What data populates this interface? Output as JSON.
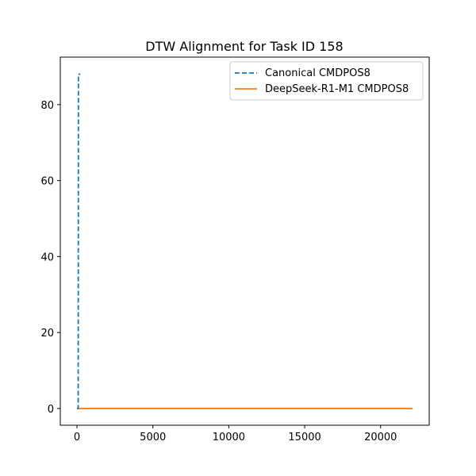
{
  "chart_data": {
    "type": "line",
    "title": "DTW Alignment for Task ID 158",
    "xlabel": "",
    "ylabel": "",
    "xlim": [
      -1100,
      23200
    ],
    "ylim": [
      -4.4,
      92.5
    ],
    "xticks": [
      0,
      5000,
      10000,
      15000,
      20000
    ],
    "xtick_labels": [
      "0",
      "5000",
      "10000",
      "15000",
      "20000"
    ],
    "yticks": [
      0,
      20,
      40,
      60,
      80
    ],
    "ytick_labels": [
      "0",
      "20",
      "40",
      "60",
      "80"
    ],
    "grid": false,
    "legend_position": "upper right",
    "series": [
      {
        "name": "Canonical CMDPOS8",
        "color": "#1f77b4",
        "style": "dashed",
        "x": [
          0,
          80,
          95,
          140,
          220
        ],
        "y": [
          0,
          0,
          88,
          88,
          88
        ]
      },
      {
        "name": "DeepSeek-R1-M1 CMDPOS8",
        "color": "#ff7f0e",
        "style": "solid",
        "x": [
          0,
          22100
        ],
        "y": [
          0,
          0
        ]
      }
    ]
  }
}
